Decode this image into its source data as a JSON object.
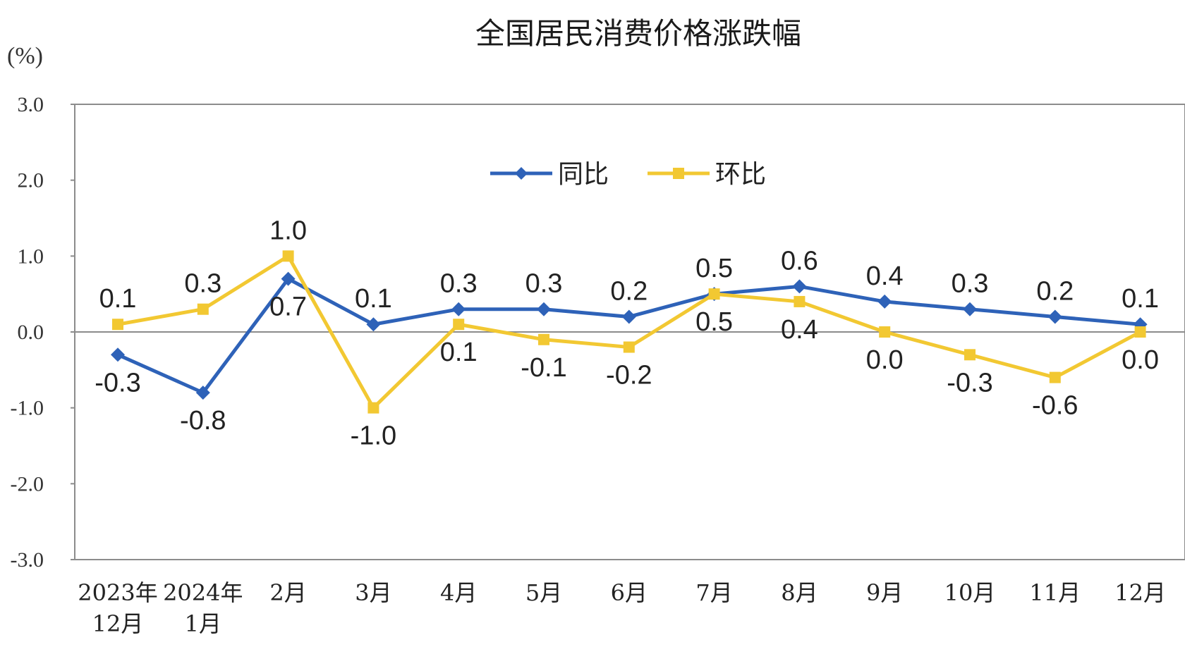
{
  "chart_data": {
    "type": "line",
    "title": "全国居民消费价格涨跌幅",
    "ylabel": "(%)",
    "ylim": [
      -3.0,
      3.0
    ],
    "yticks": [
      "3.0",
      "2.0",
      "1.0",
      "0.0",
      "-1.0",
      "-2.0",
      "-3.0"
    ],
    "ytick_values": [
      3,
      2,
      1,
      0,
      -1,
      -2,
      -3
    ],
    "categories": [
      [
        "2023年",
        "12月"
      ],
      [
        "2024年",
        "1月"
      ],
      [
        "2月"
      ],
      [
        "3月"
      ],
      [
        "4月"
      ],
      [
        "5月"
      ],
      [
        "6月"
      ],
      [
        "7月"
      ],
      [
        "8月"
      ],
      [
        "9月"
      ],
      [
        "10月"
      ],
      [
        "11月"
      ],
      [
        "12月"
      ]
    ],
    "legend_position": "top-center",
    "grid": false,
    "series": [
      {
        "name": "同比",
        "color": "#2e62b8",
        "marker": "diamond",
        "values": [
          -0.3,
          -0.8,
          0.7,
          0.1,
          0.3,
          0.3,
          0.2,
          0.5,
          0.6,
          0.4,
          0.3,
          0.2,
          0.1
        ],
        "labels": [
          "-0.3",
          "-0.8",
          "0.7",
          "0.1",
          "0.3",
          "0.3",
          "0.2",
          "0.5",
          "0.6",
          "0.4",
          "0.3",
          "0.2",
          "0.1"
        ],
        "label_pos": [
          "below",
          "below",
          "below",
          "above",
          "above",
          "above",
          "above",
          "below",
          "above",
          "above",
          "above",
          "above",
          "above"
        ]
      },
      {
        "name": "环比",
        "color": "#f2c832",
        "marker": "square",
        "values": [
          0.1,
          0.3,
          1.0,
          -1.0,
          0.1,
          -0.1,
          -0.2,
          0.5,
          0.4,
          0.0,
          -0.3,
          -0.6,
          0.0
        ],
        "labels": [
          "0.1",
          "0.3",
          "1.0",
          "-1.0",
          "0.1",
          "-0.1",
          "-0.2",
          "0.5",
          "0.4",
          "0.0",
          "-0.3",
          "-0.6",
          "0.0"
        ],
        "label_pos": [
          "above",
          "above",
          "above",
          "below",
          "below",
          "below",
          "below",
          "above",
          "below",
          "below",
          "below",
          "below",
          "below"
        ]
      }
    ]
  }
}
